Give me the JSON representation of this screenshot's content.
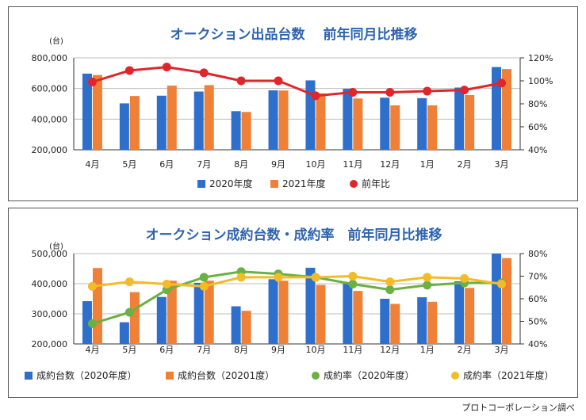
{
  "credit": "プロトコーポレーション調べ",
  "colors": {
    "blue": "#2f6fcc",
    "orange": "#ef8038",
    "red": "#e0262a",
    "green": "#6ab042",
    "yellow": "#f3bb28",
    "title": "#2d63b0"
  },
  "chart_data": [
    {
      "type": "bar",
      "title": "オークション出品台数　 前年同月比推移",
      "ylabel": "(台)",
      "categories": [
        "4月",
        "5月",
        "6月",
        "7月",
        "8月",
        "9月",
        "10月",
        "11月",
        "12月",
        "1月",
        "2月",
        "3月"
      ],
      "ylim": [
        200000,
        800000
      ],
      "yticks": [
        "800,000",
        "600,000",
        "400,000",
        "200,000"
      ],
      "y2lim": [
        40,
        120
      ],
      "y2ticks": [
        "120%",
        "100%",
        "80%",
        "60%",
        "40%"
      ],
      "grid": true,
      "legend_position": "bottom",
      "series": [
        {
          "name": "2020年度",
          "kind": "bar",
          "axis": "left",
          "color": "blue",
          "values": [
            697000,
            503000,
            553000,
            580000,
            452000,
            588000,
            653000,
            598000,
            540000,
            537000,
            606000,
            740000
          ]
        },
        {
          "name": "2021年度",
          "kind": "bar",
          "axis": "left",
          "color": "orange",
          "values": [
            688000,
            551000,
            619000,
            622000,
            447000,
            587000,
            568000,
            535000,
            490000,
            490000,
            557000,
            727000
          ]
        },
        {
          "name": "前年比",
          "kind": "line",
          "axis": "right",
          "color": "red",
          "values": [
            99,
            109,
            112,
            107,
            100,
            100,
            87,
            90,
            90,
            91,
            92,
            98
          ]
        }
      ]
    },
    {
      "type": "bar",
      "title": "オークション成約台数・成約率　前年同月比推移",
      "ylabel": "(台)",
      "categories": [
        "4月",
        "5月",
        "6月",
        "7月",
        "8月",
        "9月",
        "10月",
        "11月",
        "12月",
        "1月",
        "2月",
        "3月"
      ],
      "ylim": [
        200000,
        500000
      ],
      "yticks": [
        "500,000",
        "400,000",
        "300,000",
        "200,000"
      ],
      "y2lim": [
        40,
        80
      ],
      "y2ticks": [
        "80%",
        "70%",
        "60%",
        "50%",
        "40%"
      ],
      "grid": true,
      "legend_position": "bottom",
      "series": [
        {
          "name": "成約台数（2020年度）",
          "kind": "bar",
          "axis": "left",
          "color": "blue",
          "values": [
            342000,
            272000,
            356000,
            403000,
            325000,
            415000,
            453000,
            400000,
            350000,
            355000,
            408000,
            500000
          ]
        },
        {
          "name": "成約台数（20201度）",
          "kind": "bar",
          "axis": "left",
          "color": "orange",
          "values": [
            452000,
            372000,
            410000,
            410000,
            310000,
            410000,
            396000,
            376000,
            333000,
            340000,
            386000,
            485000
          ]
        },
        {
          "name": "成約率（2020年度）",
          "kind": "line",
          "axis": "right",
          "color": "green",
          "values": [
            49,
            54,
            64,
            69.5,
            72,
            71,
            69.5,
            66.5,
            64,
            66,
            67,
            67
          ]
        },
        {
          "name": "成約率（2021年度）",
          "kind": "line",
          "axis": "right",
          "color": "yellow",
          "values": [
            65.5,
            67.5,
            66.5,
            65.5,
            69.5,
            69.5,
            69.5,
            70,
            67.5,
            69.5,
            69,
            66.5
          ]
        }
      ]
    }
  ]
}
